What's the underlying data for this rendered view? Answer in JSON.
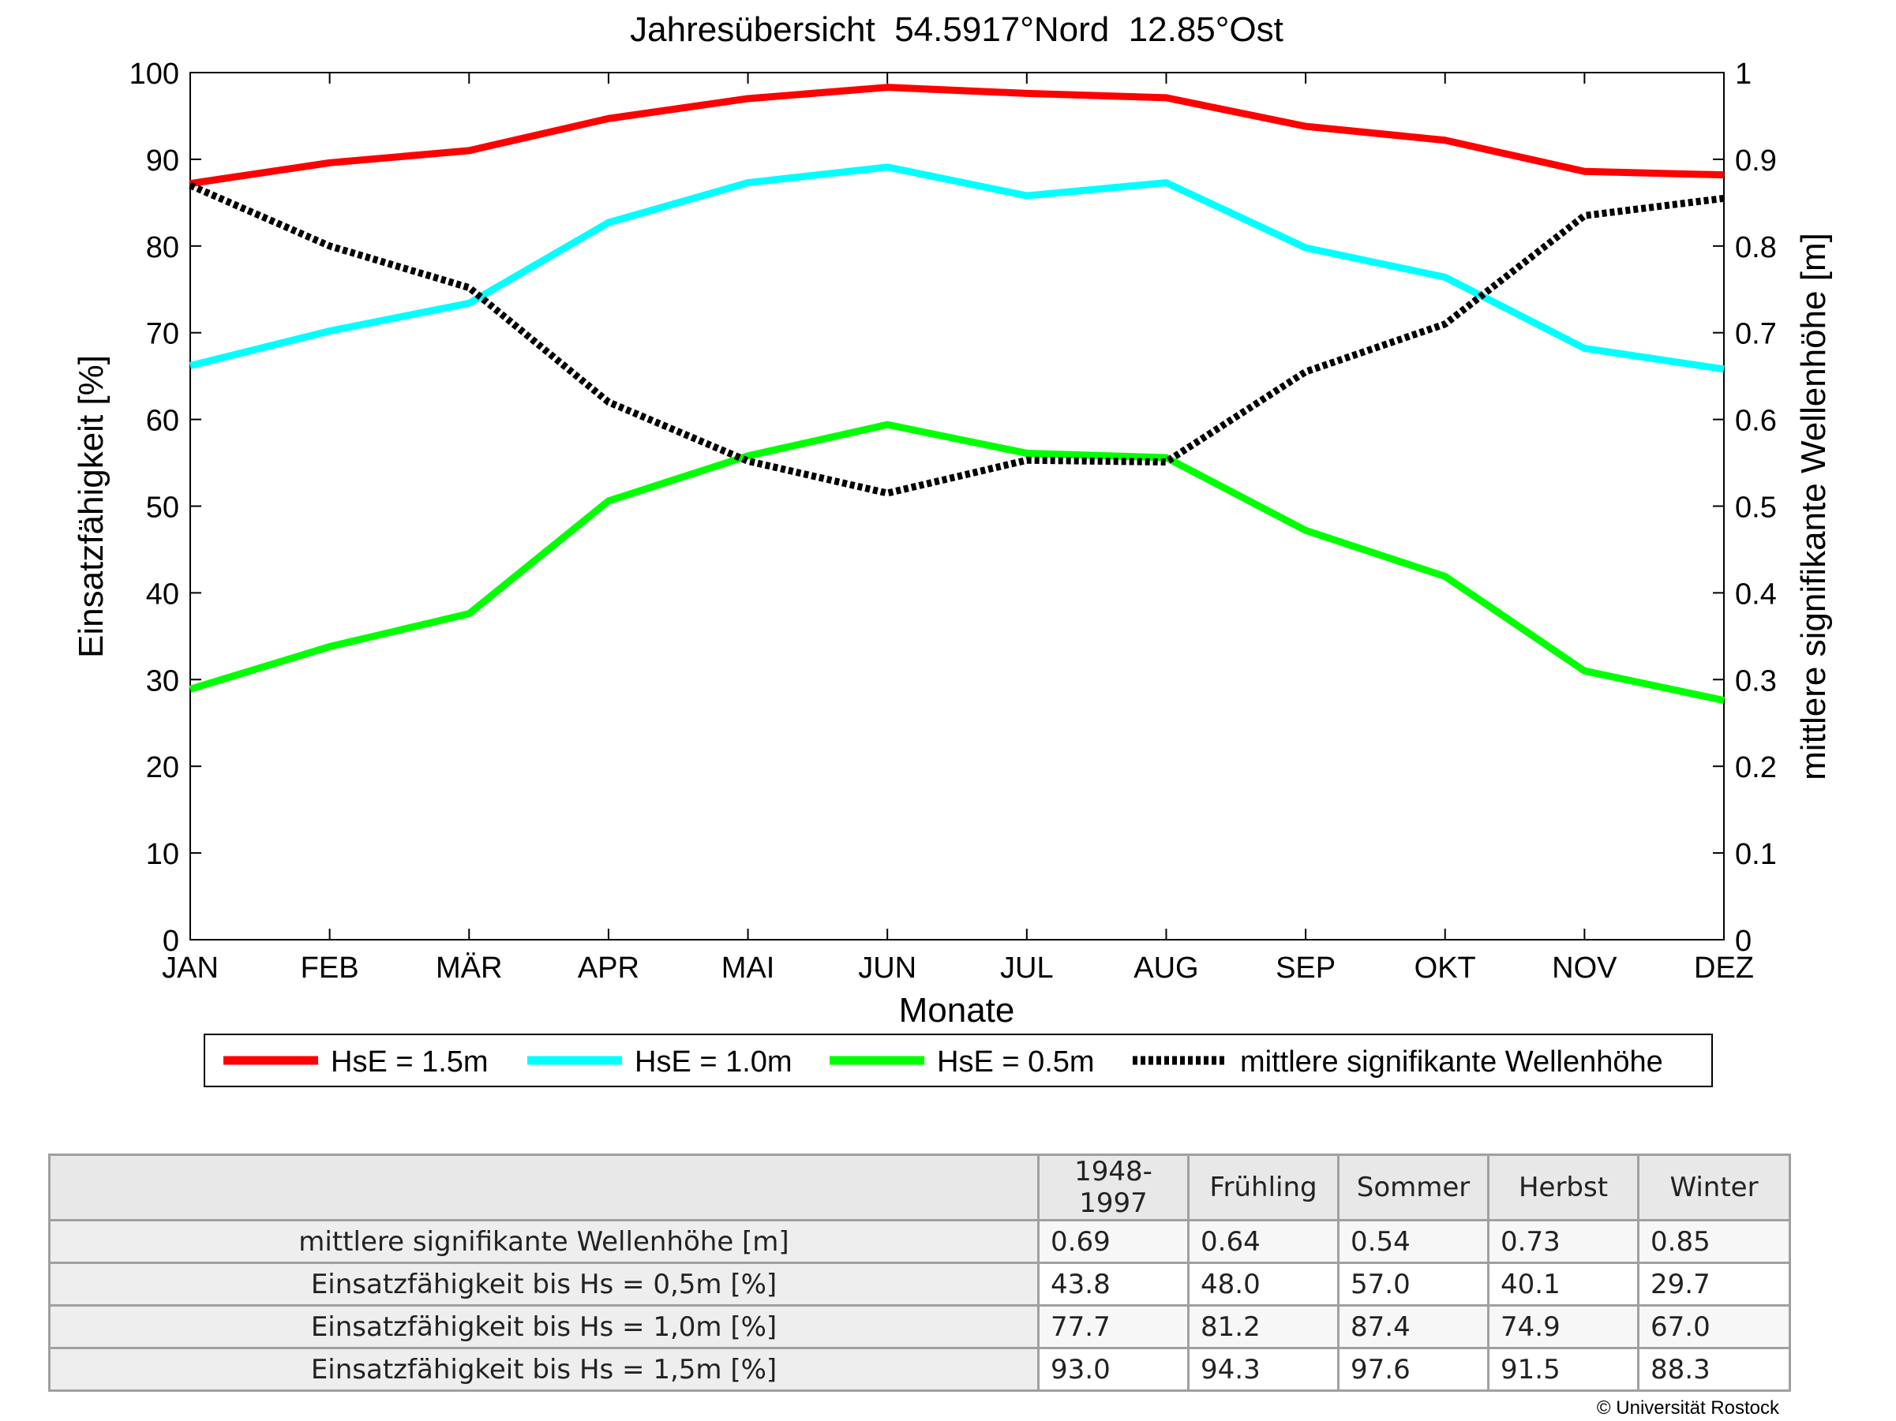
{
  "chart_data": {
    "type": "line",
    "title": "Jahresübersicht  54.5917°Nord  12.85°Ost",
    "xlabel": "Monate",
    "ylabel": "Einsatzfähigkeit [%]",
    "y2label": "mittlere signifikante Wellenhöhe [m]",
    "categories": [
      "JAN",
      "FEB",
      "MÄR",
      "APR",
      "MAI",
      "JUN",
      "JUL",
      "AUG",
      "SEP",
      "OKT",
      "NOV",
      "DEZ"
    ],
    "ylim": [
      0,
      100
    ],
    "y2lim": [
      0,
      1
    ],
    "yticks": [
      "0",
      "10",
      "20",
      "30",
      "40",
      "50",
      "60",
      "70",
      "80",
      "90",
      "100"
    ],
    "y2ticks": [
      "0",
      "0.1",
      "0.2",
      "0.3",
      "0.4",
      "0.5",
      "0.6",
      "0.7",
      "0.8",
      "0.9",
      "1"
    ],
    "grid": false,
    "legend_position": "bottom",
    "series": [
      {
        "name": "HsE = 1.5m",
        "axis": "left",
        "color": "#ff0000",
        "style": "solid",
        "values": [
          87.2,
          89.6,
          91.0,
          94.7,
          97.0,
          98.3,
          97.6,
          97.1,
          93.8,
          92.2,
          88.6,
          88.2
        ]
      },
      {
        "name": "HsE = 1.0m",
        "axis": "left",
        "color": "#00ffff",
        "style": "solid",
        "values": [
          66.2,
          70.2,
          73.4,
          82.7,
          87.3,
          89.1,
          85.8,
          87.3,
          79.8,
          76.4,
          68.2,
          65.8
        ]
      },
      {
        "name": "HsE = 0.5m",
        "axis": "left",
        "color": "#00ff00",
        "style": "solid",
        "values": [
          28.9,
          33.8,
          37.6,
          50.6,
          55.8,
          59.4,
          56.1,
          55.6,
          47.2,
          41.9,
          31.0,
          27.6
        ]
      },
      {
        "name": "mittlere signifikante Wellenhöhe",
        "axis": "right",
        "color": "#000000",
        "style": "dotted",
        "values": [
          0.87,
          0.8,
          0.752,
          0.62,
          0.552,
          0.515,
          0.553,
          0.551,
          0.655,
          0.71,
          0.835,
          0.855
        ]
      }
    ]
  },
  "table": {
    "header": [
      "",
      "1948-1997",
      "Frühling",
      "Sommer",
      "Herbst",
      "Winter"
    ],
    "rows": [
      {
        "label": "mittlere signifikante Wellenhöhe [m]",
        "values": [
          "0.69",
          "0.64",
          "0.54",
          "0.73",
          "0.85"
        ]
      },
      {
        "label": "Einsatzfähigkeit bis Hs = 0,5m [%]",
        "values": [
          "43.8",
          "48.0",
          "57.0",
          "40.1",
          "29.7"
        ]
      },
      {
        "label": "Einsatzfähigkeit bis Hs = 1,0m [%]",
        "values": [
          "77.7",
          "81.2",
          "87.4",
          "74.9",
          "67.0"
        ]
      },
      {
        "label": "Einsatzfähigkeit bis Hs = 1,5m [%]",
        "values": [
          "93.0",
          "94.3",
          "97.6",
          "91.5",
          "88.3"
        ]
      }
    ]
  },
  "copyright": "© Universität Rostock"
}
